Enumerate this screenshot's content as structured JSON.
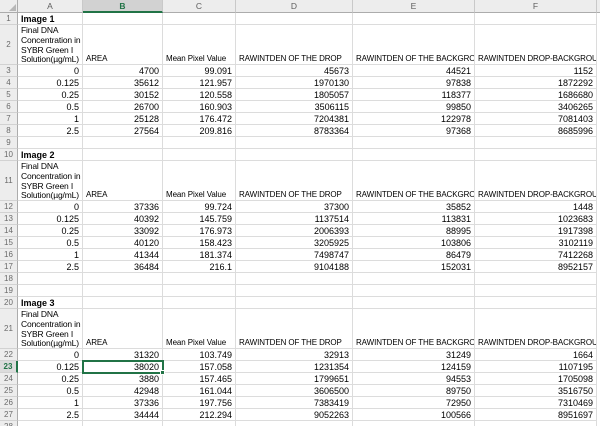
{
  "grid": {
    "col_letters": [
      "A",
      "B",
      "C",
      "D",
      "E",
      "F"
    ],
    "row_numbers": [
      "1",
      "2",
      "3",
      "4",
      "5",
      "6",
      "7",
      "8",
      "9",
      "10",
      "11",
      "12",
      "13",
      "14",
      "15",
      "16",
      "17",
      "18",
      "19",
      "20",
      "21",
      "22",
      "23",
      "24",
      "25",
      "26",
      "27",
      "28"
    ],
    "row_label_lines": [
      "Final DNA",
      "Concentration in",
      "SYBR Green I",
      "Solution(µg/mL)"
    ],
    "columns": [
      "AREA",
      "Mean Pixel Value",
      "RAWINTDEN OF THE DROP",
      "RAWINTDEN OF THE BACKGROUND",
      "RAWINTDEN DROP-BACKGROUND"
    ]
  },
  "sections": [
    {
      "title": "Image 1",
      "rows": [
        [
          "0",
          "4700",
          "99.091",
          "45673",
          "44521",
          "1152"
        ],
        [
          "0.125",
          "35612",
          "121.957",
          "1970130",
          "97838",
          "1872292"
        ],
        [
          "0.25",
          "30152",
          "120.558",
          "1805057",
          "118377",
          "1686680"
        ],
        [
          "0.5",
          "26700",
          "160.903",
          "3506115",
          "99850",
          "3406265"
        ],
        [
          "1",
          "25128",
          "176.472",
          "7204381",
          "122978",
          "7081403"
        ],
        [
          "2.5",
          "27564",
          "209.816",
          "8783364",
          "97368",
          "8685996"
        ]
      ]
    },
    {
      "title": "Image 2",
      "rows": [
        [
          "0",
          "37336",
          "99.724",
          "37300",
          "35852",
          "1448"
        ],
        [
          "0.125",
          "40392",
          "145.759",
          "1137514",
          "113831",
          "1023683"
        ],
        [
          "0.25",
          "33092",
          "176.973",
          "2006393",
          "88995",
          "1917398"
        ],
        [
          "0.5",
          "40120",
          "158.423",
          "3205925",
          "103806",
          "3102119"
        ],
        [
          "1",
          "41344",
          "181.374",
          "7498747",
          "86479",
          "7412268"
        ],
        [
          "2.5",
          "36484",
          "216.1",
          "9104188",
          "152031",
          "8952157"
        ]
      ]
    },
    {
      "title": "Image 3",
      "rows": [
        [
          "0",
          "31320",
          "103.749",
          "32913",
          "31249",
          "1664"
        ],
        [
          "0.125",
          "38020",
          "157.058",
          "1231354",
          "124159",
          "1107195"
        ],
        [
          "0.25",
          "3880",
          "157.465",
          "1799651",
          "94553",
          "1705098"
        ],
        [
          "0.5",
          "42948",
          "161.044",
          "3606500",
          "89750",
          "3516750"
        ],
        [
          "1",
          "37336",
          "197.756",
          "7383419",
          "72950",
          "7310469"
        ],
        [
          "2.5",
          "34444",
          "212.294",
          "9052263",
          "100566",
          "8951697"
        ]
      ]
    }
  ],
  "selection": {
    "cell": "B23",
    "value": "38020",
    "accent_color": "#217346"
  }
}
